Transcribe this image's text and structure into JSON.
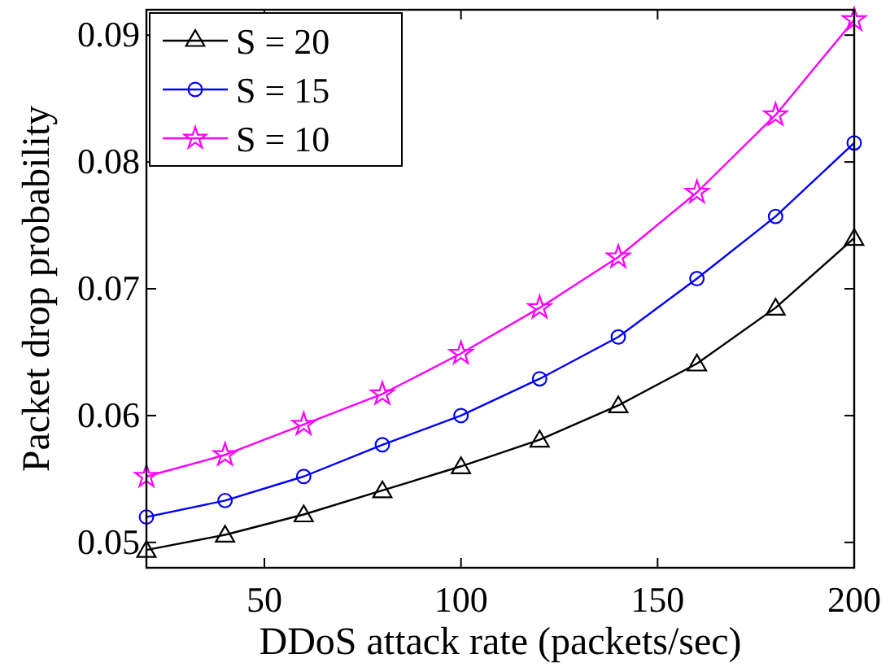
{
  "chart_data": {
    "type": "line",
    "xlabel": "DDoS attack rate (packets/sec)",
    "ylabel": "Packet drop probability",
    "x": [
      20,
      40,
      60,
      80,
      100,
      120,
      140,
      160,
      180,
      200
    ],
    "series": [
      {
        "name": "S = 20",
        "color": "#000000",
        "marker": "triangle",
        "values": [
          0.0494,
          0.0506,
          0.0522,
          0.0541,
          0.056,
          0.0581,
          0.0608,
          0.0641,
          0.0685,
          0.074
        ]
      },
      {
        "name": "S = 15",
        "color": "#0000ff",
        "marker": "circle",
        "values": [
          0.052,
          0.0533,
          0.0552,
          0.0577,
          0.06,
          0.0629,
          0.0662,
          0.0708,
          0.0757,
          0.0815
        ]
      },
      {
        "name": "S = 10",
        "color": "#ff00ff",
        "marker": "star",
        "values": [
          0.0552,
          0.0569,
          0.0593,
          0.0617,
          0.0649,
          0.0685,
          0.0725,
          0.0776,
          0.0837,
          0.0912
        ]
      }
    ],
    "xlim": [
      20,
      200
    ],
    "ylim": [
      0.048,
      0.092
    ],
    "xticks": [
      50,
      100,
      150,
      200
    ],
    "yticks": [
      0.05,
      0.06,
      0.07,
      0.08,
      0.09
    ],
    "grid": false,
    "legend": "top left",
    "line_style": "solid"
  }
}
